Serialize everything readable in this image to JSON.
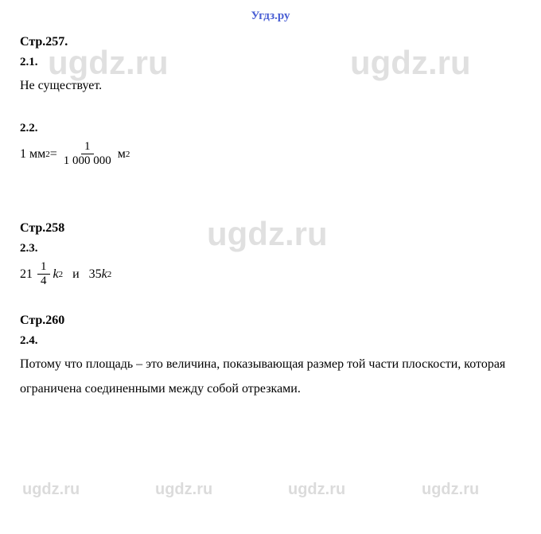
{
  "header": {
    "site": "Угдз.ру"
  },
  "watermarks": {
    "large": "ugdz.ru",
    "small": "ugdz.ru"
  },
  "sections": [
    {
      "title": "Стр.257.",
      "items": [
        {
          "number": "2.1.",
          "text": "Не существует."
        },
        {
          "number": "2.2.",
          "formula_lhs": "1 мм",
          "formula_exp1": "2",
          "equals": " = ",
          "frac_num": "1",
          "frac_den": "1 000 000",
          "unit": " м",
          "formula_exp2": "2"
        }
      ]
    },
    {
      "title": "Стр.258",
      "items": [
        {
          "number": "2.3.",
          "mixed_whole": "21",
          "mixed_num": "1",
          "mixed_den": "4",
          "k_part": "k",
          "k_exp": "2",
          "conj": "   и   ",
          "val2": "35",
          "k_part2": "k",
          "k_exp2": "2"
        }
      ]
    },
    {
      "title": "Стр.260",
      "items": [
        {
          "number": "2.4.",
          "text": "Потому что площадь – это величина, показывающая размер той части плоскости, которая ограничена соединенными между собой отрезками."
        }
      ]
    }
  ],
  "colors": {
    "header_color": "#4a5fd4",
    "text_color": "#000000",
    "background": "#ffffff",
    "watermark_color": "rgba(0,0,0,0.12)"
  }
}
